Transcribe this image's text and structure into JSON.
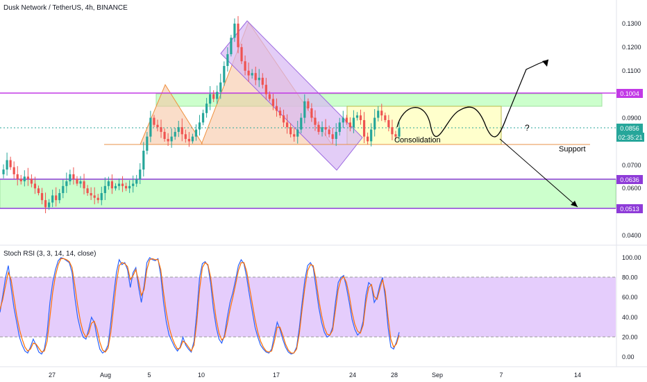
{
  "header": {
    "symbol_title": "Dusk Network / TetherUS, 4h, BINANCE",
    "indicator_title": "Stoch RSI (3, 3, 14, 14, close)"
  },
  "colors": {
    "up": "#26a69a",
    "down": "#ef5350",
    "level_line": "#c239e6",
    "green_zone": "#ccffcc",
    "yellow_zone": "#ffffcc",
    "orange_shape": "#f6c7a5",
    "purple_channel": "#d7b8f4",
    "stoch_k": "#2962ff",
    "stoch_d": "#ff6d00",
    "stoch_band": "#e5cdfc"
  },
  "annotations": {
    "consolidation": "Consolidation",
    "support": "Support",
    "question": "?"
  },
  "price_badges": {
    "level_top": "0.1004",
    "current": "0.0856",
    "countdown": "02:35:21",
    "level_mid": "0.0636",
    "level_low": "0.0513"
  },
  "chart_data": [
    {
      "type": "candlestick",
      "title": "Dusk Network / TetherUS, 4h, BINANCE",
      "y_ticks": [
        "0.1300",
        "0.1200",
        "0.1100",
        "0.0900",
        "0.0700",
        "0.0600",
        "0.0400"
      ],
      "x_ticks": [
        "27",
        "Aug",
        "5",
        "10",
        "17",
        "24",
        "28",
        "Sep",
        "7",
        "14"
      ],
      "ylim": [
        0.036,
        0.138
      ],
      "grid": false,
      "horizontal_levels": [
        0.1004,
        0.0636,
        0.0513
      ],
      "current_price": 0.0856,
      "path": [
        0.066,
        0.068,
        0.072,
        0.069,
        0.066,
        0.064,
        0.063,
        0.065,
        0.064,
        0.062,
        0.06,
        0.058,
        0.055,
        0.052,
        0.054,
        0.057,
        0.055,
        0.058,
        0.061,
        0.063,
        0.066,
        0.064,
        0.062,
        0.063,
        0.06,
        0.058,
        0.057,
        0.056,
        0.055,
        0.058,
        0.061,
        0.063,
        0.06,
        0.061,
        0.062,
        0.061,
        0.06,
        0.061,
        0.062,
        0.064,
        0.068,
        0.076,
        0.082,
        0.09,
        0.087,
        0.086,
        0.084,
        0.081,
        0.08,
        0.082,
        0.084,
        0.086,
        0.083,
        0.081,
        0.08,
        0.082,
        0.085,
        0.088,
        0.092,
        0.096,
        0.1,
        0.098,
        0.101,
        0.105,
        0.112,
        0.117,
        0.124,
        0.13,
        0.12,
        0.114,
        0.11,
        0.108,
        0.109,
        0.106,
        0.107,
        0.104,
        0.1,
        0.098,
        0.095,
        0.093,
        0.091,
        0.088,
        0.086,
        0.083,
        0.082,
        0.085,
        0.09,
        0.097,
        0.094,
        0.09,
        0.087,
        0.084,
        0.086,
        0.085,
        0.083,
        0.081,
        0.084,
        0.088,
        0.09,
        0.088,
        0.086,
        0.09,
        0.091,
        0.089,
        0.082,
        0.08,
        0.085,
        0.09,
        0.093,
        0.091,
        0.089,
        0.086,
        0.083,
        0.082,
        0.0856
      ]
    },
    {
      "type": "line",
      "title": "Stoch RSI (3, 3, 14, 14, close)",
      "y_ticks": [
        "100.00",
        "80.00",
        "60.00",
        "40.00",
        "20.00",
        "0.00"
      ],
      "ylim": [
        -5,
        104
      ],
      "bands": [
        20,
        80
      ],
      "series": [
        {
          "name": "K",
          "values": [
            45,
            62,
            80,
            92,
            70,
            50,
            35,
            20,
            12,
            6,
            4,
            10,
            18,
            12,
            5,
            3,
            8,
            25,
            55,
            75,
            88,
            97,
            100,
            99,
            97,
            95,
            85,
            60,
            40,
            28,
            20,
            18,
            28,
            40,
            35,
            20,
            8,
            4,
            6,
            12,
            35,
            62,
            85,
            98,
            93,
            95,
            88,
            70,
            85,
            90,
            70,
            55,
            72,
            95,
            100,
            98,
            97,
            99,
            82,
            55,
            35,
            22,
            16,
            10,
            6,
            10,
            20,
            12,
            8,
            5,
            16,
            45,
            80,
            94,
            96,
            92,
            74,
            48,
            30,
            18,
            14,
            22,
            40,
            55,
            65,
            78,
            92,
            98,
            94,
            80,
            62,
            46,
            30,
            20,
            12,
            8,
            5,
            4,
            8,
            22,
            35,
            28,
            18,
            10,
            5,
            3,
            4,
            10,
            30,
            55,
            78,
            92,
            95,
            90,
            70,
            50,
            35,
            25,
            20,
            22,
            30,
            55,
            75,
            80,
            82,
            70,
            55,
            38,
            28,
            22,
            25,
            36,
            62,
            75,
            72,
            55,
            60,
            72,
            80,
            60,
            30,
            10,
            8,
            15,
            25
          ]
        },
        {
          "name": "D",
          "values": [
            48,
            58,
            72,
            85,
            78,
            60,
            42,
            28,
            18,
            10,
            6,
            8,
            14,
            13,
            9,
            5,
            6,
            16,
            40,
            65,
            82,
            93,
            99,
            99,
            98,
            96,
            90,
            72,
            52,
            36,
            25,
            20,
            24,
            34,
            36,
            28,
            15,
            7,
            5,
            9,
            25,
            50,
            75,
            92,
            95,
            94,
            91,
            78,
            82,
            88,
            76,
            62,
            68,
            88,
            98,
            99,
            98,
            98,
            88,
            65,
            45,
            30,
            20,
            13,
            8,
            9,
            16,
            14,
            10,
            6,
            12,
            35,
            68,
            90,
            95,
            93,
            80,
            58,
            38,
            24,
            17,
            20,
            33,
            48,
            60,
            73,
            87,
            95,
            95,
            86,
            70,
            54,
            38,
            25,
            16,
            10,
            6,
            5,
            6,
            16,
            30,
            30,
            22,
            13,
            7,
            4,
            4,
            8,
            24,
            48,
            70,
            87,
            93,
            92,
            78,
            58,
            42,
            30,
            23,
            22,
            27,
            47,
            68,
            78,
            81,
            75,
            62,
            45,
            33,
            26,
            24,
            32,
            55,
            70,
            73,
            61,
            58,
            68,
            78,
            66,
            40,
            18,
            10,
            13,
            22
          ]
        }
      ]
    }
  ]
}
